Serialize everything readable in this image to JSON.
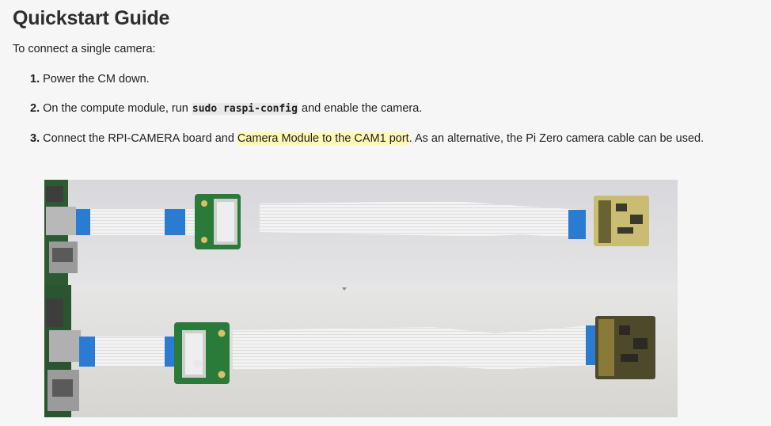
{
  "page": {
    "title": "Quickstart Guide",
    "intro": "To connect a single camera:"
  },
  "steps": [
    {
      "number": "1.",
      "text": "Power the CM down."
    },
    {
      "number": "2.",
      "before": "On the compute module, run",
      "code": "sudo raspi-config",
      "after": "and enable the camera."
    },
    {
      "number": "3.",
      "before": "Connect the RPI-CAMERA board and",
      "highlight": "Camera Module to the CAM1 port",
      "after": ". As an alternative, the Pi Zero camera cable can be used."
    }
  ],
  "colors": {
    "highlight": "#fff8b4",
    "ribbon_cable": "#f1f1f1",
    "ribbon_contacts": "#2a7bd2",
    "pcb_green": "#2a7a39",
    "camera_board": "#4d4a2b"
  },
  "photo": {
    "description_icon": "ribbon-cable-photo"
  }
}
